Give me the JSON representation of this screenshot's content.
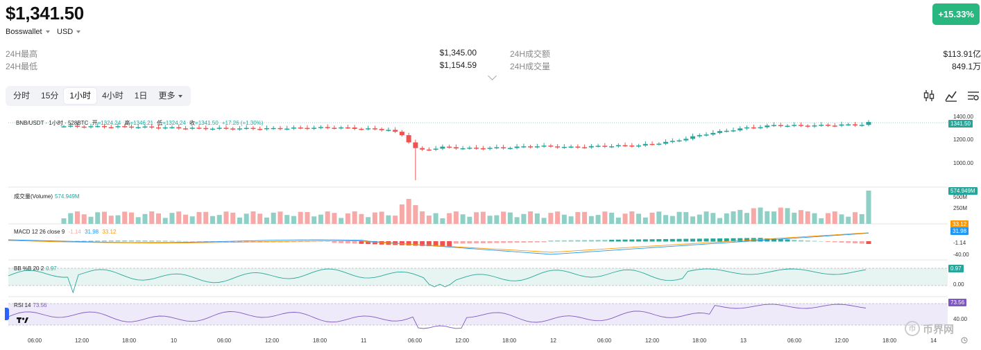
{
  "header": {
    "price": "$1,341.50",
    "wallet": "Bosswallet",
    "currency": "USD",
    "change": "+15.33%"
  },
  "stats": {
    "high_label": "24H最高",
    "high_value": "$1,345.00",
    "low_label": "24H最低",
    "low_value": "$1,154.59",
    "turnover_label": "24H成交额",
    "turnover_value": "$113.91亿",
    "volume_label": "24H成交量",
    "volume_value": "849.1万"
  },
  "tabs": [
    "分时",
    "15分",
    "1小时",
    "4小时",
    "1日",
    "更多"
  ],
  "active_tab": "1小时",
  "tools": [
    "indicator-icon",
    "line-chart-icon",
    "settings-icon"
  ],
  "chart": {
    "legend": {
      "symbol": "BNB/USDT · 1小时 · 528BTC",
      "open_label": "开",
      "open": "=1324.24",
      "high_label": "高",
      "high": "=1346.21",
      "low_label": "低",
      "low": "=1324.24",
      "close_label": "收",
      "close": "=1341.50",
      "change": "+17.26 (+1.30%)"
    },
    "price_ticks": [
      "1400.00",
      "1200.00",
      "1000.00"
    ],
    "price_tag": "1341.50",
    "volume": {
      "label": "成交量(Volume)",
      "value": "574.949M",
      "tag": "574.949M",
      "ticks": [
        "500M",
        "250M"
      ]
    },
    "macd": {
      "label": "MACD 12 26 close 9",
      "v1": "-1.14",
      "v2": "31.98",
      "v3": "33.12",
      "tags": [
        "33.12",
        "31.98",
        "-1.14"
      ],
      "ticks": [
        "-40.00"
      ]
    },
    "bb": {
      "label": "BB %B 20 2",
      "value": "0.97",
      "tag": "0.97",
      "ticks": [
        "0.00"
      ]
    },
    "rsi": {
      "label": "RSI 14",
      "value": "73.56",
      "tag": "73.56",
      "ticks": [
        "40.00"
      ]
    },
    "time_labels": [
      "06:00",
      "12:00",
      "18:00",
      "10",
      "06:00",
      "12:00",
      "18:00",
      "11",
      "06:00",
      "12:00",
      "18:00",
      "12",
      "06:00",
      "12:00",
      "18:00",
      "13",
      "06:00",
      "12:00",
      "18:00",
      "14"
    ],
    "colors": {
      "up": "#26a69a",
      "down": "#ef5350",
      "up_light": "#8fd0c6",
      "down_light": "#f7a9a7",
      "rsi": "#7e57c2",
      "bb": "#26a69a",
      "macd_line": "#2196f3",
      "signal": "#ff9800"
    }
  },
  "watermark": "币界网"
}
